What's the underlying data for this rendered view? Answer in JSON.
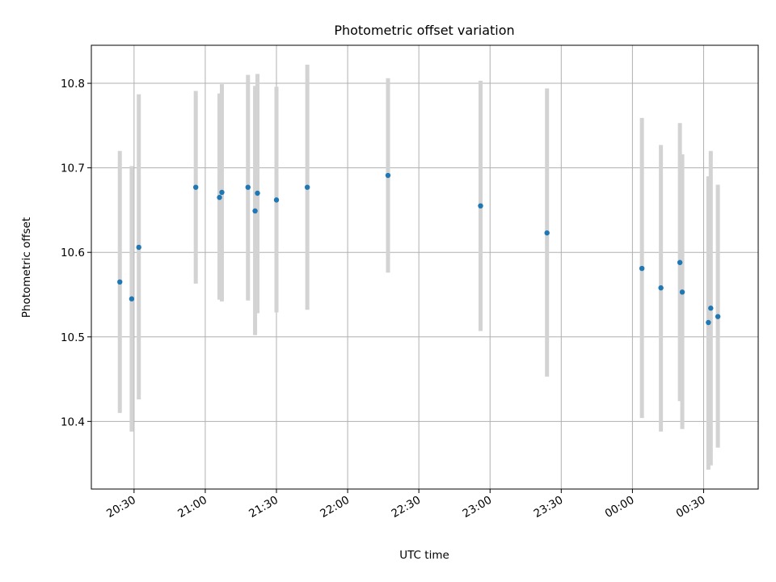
{
  "chart_data": {
    "type": "scatter",
    "title": "Photometric offset variation",
    "xlabel": "UTC time",
    "ylabel": "Photometric offset",
    "x_tick_labels": [
      "20:30",
      "21:00",
      "21:30",
      "22:00",
      "22:30",
      "23:00",
      "23:30",
      "00:00",
      "00:30"
    ],
    "y_tick_labels": [
      "10.4",
      "10.5",
      "10.6",
      "10.7",
      "10.8"
    ],
    "xlim": [
      "20:12",
      "00:53"
    ],
    "ylim": [
      10.32,
      10.845
    ],
    "grid": true,
    "legend": "none",
    "marker_color": "#1f77b4",
    "errorbar_color": "#d3d3d3",
    "points": [
      {
        "t": "20:24",
        "y": 10.565,
        "lo": 10.41,
        "hi": 10.72
      },
      {
        "t": "20:29",
        "y": 10.545,
        "lo": 10.388,
        "hi": 10.702
      },
      {
        "t": "20:32",
        "y": 10.606,
        "lo": 10.426,
        "hi": 10.787
      },
      {
        "t": "20:56",
        "y": 10.677,
        "lo": 10.563,
        "hi": 10.791
      },
      {
        "t": "21:06",
        "y": 10.665,
        "lo": 10.544,
        "hi": 10.788
      },
      {
        "t": "21:07",
        "y": 10.671,
        "lo": 10.542,
        "hi": 10.799
      },
      {
        "t": "21:18",
        "y": 10.677,
        "lo": 10.543,
        "hi": 10.81
      },
      {
        "t": "21:21",
        "y": 10.649,
        "lo": 10.502,
        "hi": 10.797
      },
      {
        "t": "21:22",
        "y": 10.67,
        "lo": 10.528,
        "hi": 10.811
      },
      {
        "t": "21:30",
        "y": 10.662,
        "lo": 10.529,
        "hi": 10.796
      },
      {
        "t": "21:43",
        "y": 10.677,
        "lo": 10.532,
        "hi": 10.822
      },
      {
        "t": "22:17",
        "y": 10.691,
        "lo": 10.576,
        "hi": 10.806
      },
      {
        "t": "22:56",
        "y": 10.655,
        "lo": 10.507,
        "hi": 10.803
      },
      {
        "t": "23:24",
        "y": 10.623,
        "lo": 10.453,
        "hi": 10.794
      },
      {
        "t": "00:04",
        "y": 10.581,
        "lo": 10.404,
        "hi": 10.759
      },
      {
        "t": "00:12",
        "y": 10.558,
        "lo": 10.388,
        "hi": 10.727
      },
      {
        "t": "00:20",
        "y": 10.588,
        "lo": 10.424,
        "hi": 10.753
      },
      {
        "t": "00:21",
        "y": 10.553,
        "lo": 10.391,
        "hi": 10.716
      },
      {
        "t": "00:32",
        "y": 10.517,
        "lo": 10.343,
        "hi": 10.69
      },
      {
        "t": "00:33",
        "y": 10.534,
        "lo": 10.348,
        "hi": 10.72
      },
      {
        "t": "00:36",
        "y": 10.524,
        "lo": 10.369,
        "hi": 10.68
      }
    ]
  }
}
